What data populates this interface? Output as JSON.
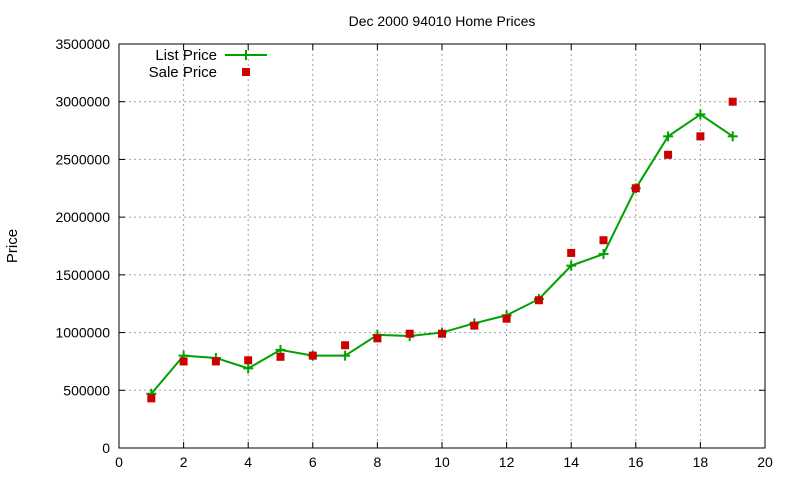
{
  "chart_data": {
    "type": "line",
    "title": "Dec 2000 94010 Home Prices",
    "xlabel": "",
    "ylabel": "Price",
    "xlim": [
      0,
      20
    ],
    "ylim": [
      0,
      3500000
    ],
    "xticks": [
      0,
      2,
      4,
      6,
      8,
      10,
      12,
      14,
      16,
      18,
      20
    ],
    "yticks": [
      0,
      500000,
      1000000,
      1500000,
      2000000,
      2500000,
      3000000,
      3500000
    ],
    "grid": true,
    "legend_position": "top-left",
    "series": [
      {
        "name": "List Price",
        "style": "line-points",
        "marker": "plus",
        "color": "#00a000",
        "x": [
          1,
          2,
          3,
          4,
          5,
          6,
          7,
          8,
          9,
          10,
          11,
          12,
          13,
          14,
          15,
          16,
          17,
          18,
          19
        ],
        "values": [
          470000,
          800000,
          780000,
          690000,
          850000,
          800000,
          800000,
          980000,
          970000,
          1000000,
          1080000,
          1150000,
          1290000,
          1580000,
          1680000,
          2250000,
          2700000,
          2890000,
          2700000
        ]
      },
      {
        "name": "Sale Price",
        "style": "points",
        "marker": "square",
        "color": "#cc0000",
        "x": [
          1,
          2,
          3,
          4,
          5,
          6,
          7,
          8,
          9,
          10,
          11,
          12,
          13,
          14,
          15,
          16,
          17,
          18,
          19
        ],
        "values": [
          430000,
          750000,
          750000,
          760000,
          790000,
          800000,
          890000,
          950000,
          990000,
          990000,
          1060000,
          1120000,
          1280000,
          1690000,
          1800000,
          2250000,
          2540000,
          2700000,
          3000000
        ]
      }
    ]
  }
}
